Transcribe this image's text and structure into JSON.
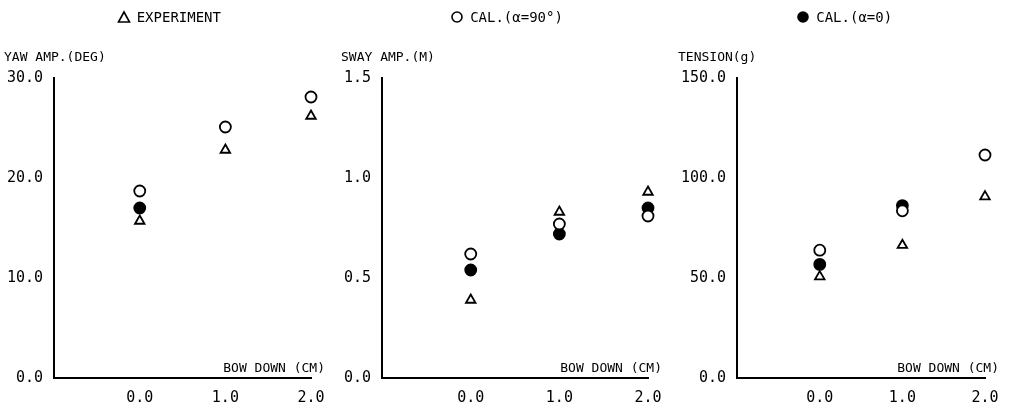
{
  "chart_data": [
    {
      "type": "scatter",
      "ylabel": "YAW AMP.(DEG)",
      "xlabel": "BOW DOWN (CM)",
      "xlim": [
        -1,
        2
      ],
      "xticks": [
        {
          "value": 0,
          "label": "0.0"
        },
        {
          "value": 1,
          "label": "1.0"
        },
        {
          "value": 2,
          "label": "2.0"
        }
      ],
      "ylim": [
        0,
        30
      ],
      "yticks": [
        {
          "value": 0,
          "label": "0.0"
        },
        {
          "value": 10,
          "label": "10.0"
        },
        {
          "value": 20,
          "label": "20.0"
        },
        {
          "value": 30,
          "label": "30.0"
        }
      ],
      "legend": "top",
      "grid": false,
      "series": [
        {
          "name": "EXPERIMENT",
          "color": "#ffffff",
          "marker": "triangle",
          "x": [
            0,
            1,
            2
          ],
          "values": [
            15.7,
            22.8,
            26.2
          ]
        },
        {
          "name": "CAL.(α=90°)",
          "color": "#ffffff",
          "marker": "circle",
          "x": [
            0,
            1,
            2
          ],
          "values": [
            18.7,
            25.1,
            28.1
          ]
        },
        {
          "name": "CAL.(α=0)",
          "color": "#000000",
          "marker": "circle",
          "x": [
            0
          ],
          "values": [
            17.0
          ]
        }
      ]
    },
    {
      "type": "scatter",
      "ylabel": "SWAY AMP.(M)",
      "xlabel": "BOW DOWN (CM)",
      "xlim": [
        -1,
        2
      ],
      "xticks": [
        {
          "value": 0,
          "label": "0.0"
        },
        {
          "value": 1,
          "label": "1.0"
        },
        {
          "value": 2,
          "label": "2.0"
        }
      ],
      "ylim": [
        0,
        1.5
      ],
      "yticks": [
        {
          "value": 0,
          "label": "0.0"
        },
        {
          "value": 0.5,
          "label": "0.5"
        },
        {
          "value": 1,
          "label": "1.0"
        },
        {
          "value": 1.5,
          "label": "1.5"
        }
      ],
      "grid": false,
      "series": [
        {
          "color": "#ffffff",
          "marker": "triangle",
          "x": [
            0,
            1,
            2
          ],
          "values": [
            0.39,
            0.83,
            0.93
          ]
        },
        {
          "color": "#ffffff",
          "marker": "circle",
          "x": [
            0,
            1,
            2
          ],
          "values": [
            0.62,
            0.77,
            0.81
          ]
        },
        {
          "color": "#000000",
          "marker": "circle",
          "x": [
            0,
            1,
            2
          ],
          "values": [
            0.54,
            0.72,
            0.85
          ]
        }
      ]
    },
    {
      "type": "scatter",
      "ylabel": "TENSION(g)",
      "xlabel": "BOW DOWN (CM)",
      "xlim": [
        -1,
        2
      ],
      "xticks": [
        {
          "value": 0,
          "label": "0.0"
        },
        {
          "value": 1,
          "label": "1.0"
        },
        {
          "value": 2,
          "label": "2.0"
        }
      ],
      "ylim": [
        0,
        150
      ],
      "yticks": [
        {
          "value": 0,
          "label": "0.0"
        },
        {
          "value": 50,
          "label": "50.0"
        },
        {
          "value": 100,
          "label": "100.0"
        },
        {
          "value": 150,
          "label": "150.0"
        }
      ],
      "grid": false,
      "series": [
        {
          "color": "#ffffff",
          "marker": "triangle",
          "x": [
            0,
            1,
            2
          ],
          "values": [
            50.7,
            66.4,
            90.7
          ]
        },
        {
          "color": "#ffffff",
          "marker": "circle",
          "x": [
            0,
            1,
            2
          ],
          "values": [
            63.9,
            83.6,
            111.5
          ]
        },
        {
          "color": "#000000",
          "marker": "circle",
          "x": [
            0,
            1
          ],
          "values": [
            56.8,
            86.2
          ]
        }
      ]
    }
  ]
}
